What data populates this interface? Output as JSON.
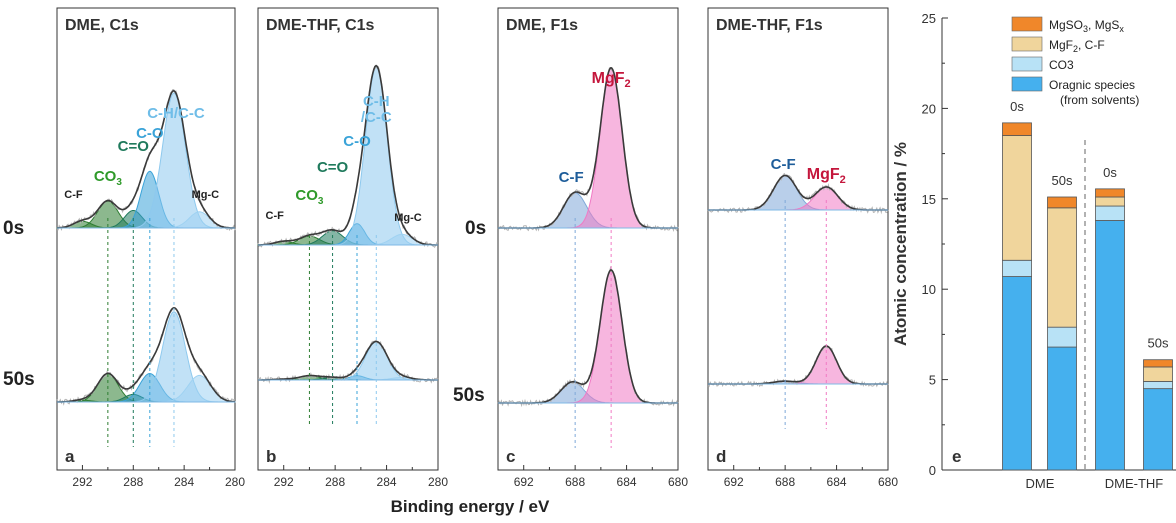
{
  "figure": {
    "row_labels": [
      "0s",
      "50s"
    ],
    "shared_xlabel": "Binding energy / eV"
  },
  "chart_data": [
    {
      "type": "line",
      "panel": "a",
      "title": "DME, C1s",
      "x_ticks": [
        292,
        288,
        284,
        280
      ],
      "xlim": [
        294,
        280
      ],
      "x_reversed": true,
      "components": [
        {
          "name": "C-F",
          "label": "C-F",
          "center": 292.0,
          "color": "#2e7d32"
        },
        {
          "name": "CO3",
          "label": "CO3",
          "center": 290.0,
          "color": "#2e7d32"
        },
        {
          "name": "C=O",
          "label": "C=O",
          "center": 288.0,
          "color": "#1f7a5c"
        },
        {
          "name": "C-O",
          "label": "C-O",
          "center": 286.7,
          "color": "#3aa3d8"
        },
        {
          "name": "C-H/C-C",
          "label": "C-H/C-C",
          "center": 284.8,
          "color": "#8ec9ee"
        },
        {
          "name": "Mg-C",
          "label": "Mg-C",
          "center": 282.8,
          "color": "#9fd2f2"
        }
      ],
      "series": [
        {
          "name": "0s",
          "peaks": [
            {
              "c": 292.0,
              "h": 0.05,
              "w": 0.7,
              "comp": "C-F"
            },
            {
              "c": 290.0,
              "h": 0.2,
              "w": 0.8,
              "comp": "CO3"
            },
            {
              "c": 288.0,
              "h": 0.13,
              "w": 0.7,
              "comp": "C=O"
            },
            {
              "c": 286.7,
              "h": 0.42,
              "w": 0.7,
              "comp": "C-O"
            },
            {
              "c": 284.8,
              "h": 1.0,
              "w": 0.9,
              "comp": "C-H/C-C"
            },
            {
              "c": 282.8,
              "h": 0.12,
              "w": 0.8,
              "comp": "Mg-C"
            }
          ]
        },
        {
          "name": "50s",
          "peaks": [
            {
              "c": 292.0,
              "h": 0.02,
              "w": 0.7,
              "comp": "C-F"
            },
            {
              "c": 290.0,
              "h": 0.3,
              "w": 0.8,
              "comp": "CO3"
            },
            {
              "c": 288.0,
              "h": 0.08,
              "w": 0.7,
              "comp": "C=O"
            },
            {
              "c": 286.7,
              "h": 0.3,
              "w": 0.8,
              "comp": "C-O"
            },
            {
              "c": 284.8,
              "h": 0.95,
              "w": 0.9,
              "comp": "C-H/C-C"
            },
            {
              "c": 282.8,
              "h": 0.28,
              "w": 0.9,
              "comp": "Mg-C"
            }
          ]
        }
      ],
      "annotations": [
        "C-F",
        "CO3",
        "C=O",
        "C-O",
        "C-H/C-C",
        "Mg-C"
      ]
    },
    {
      "type": "line",
      "panel": "b",
      "title": "DME-THF, C1s",
      "x_ticks": [
        292,
        288,
        284,
        280
      ],
      "xlim": [
        294,
        280
      ],
      "x_reversed": true,
      "components": [
        {
          "name": "C-F",
          "label": "C-F",
          "center": 292.0,
          "color": "#2e7d32"
        },
        {
          "name": "CO3",
          "label": "CO3",
          "center": 290.0,
          "color": "#2e7d32"
        },
        {
          "name": "C=O",
          "label": "C=O",
          "center": 288.2,
          "color": "#1f7a5c"
        },
        {
          "name": "C-O",
          "label": "C-O",
          "center": 286.3,
          "color": "#3aa3d8"
        },
        {
          "name": "C-H/C-C",
          "label": "C-H /C-C",
          "center": 284.8,
          "color": "#8ec9ee"
        },
        {
          "name": "Mg-C",
          "label": "Mg-C",
          "center": 282.8,
          "color": "#9fd2f2"
        }
      ],
      "series": [
        {
          "name": "0s",
          "peaks": [
            {
              "c": 292.0,
              "h": 0.02,
              "w": 0.7,
              "comp": "C-F"
            },
            {
              "c": 290.0,
              "h": 0.05,
              "w": 0.8,
              "comp": "CO3"
            },
            {
              "c": 288.2,
              "h": 0.08,
              "w": 0.8,
              "comp": "C=O"
            },
            {
              "c": 286.3,
              "h": 0.12,
              "w": 0.6,
              "comp": "C-O"
            },
            {
              "c": 284.8,
              "h": 1.0,
              "w": 0.85,
              "comp": "C-H/C-C"
            },
            {
              "c": 282.8,
              "h": 0.06,
              "w": 0.8,
              "comp": "Mg-C"
            }
          ]
        },
        {
          "name": "50s",
          "peaks": [
            {
              "c": 292.0,
              "h": 0.01,
              "w": 0.7,
              "comp": "C-F"
            },
            {
              "c": 290.0,
              "h": 0.05,
              "w": 0.8,
              "comp": "CO3"
            },
            {
              "c": 288.2,
              "h": 0.03,
              "w": 0.8,
              "comp": "C=O"
            },
            {
              "c": 286.3,
              "h": 0.05,
              "w": 0.6,
              "comp": "C-O"
            },
            {
              "c": 284.8,
              "h": 0.45,
              "w": 0.85,
              "comp": "C-H/C-C"
            },
            {
              "c": 282.8,
              "h": 0.03,
              "w": 0.8,
              "comp": "Mg-C"
            }
          ]
        }
      ],
      "annotations": [
        "C-F",
        "CO3",
        "C=O",
        "C-O",
        "C-H /C-C",
        "Mg-C"
      ]
    },
    {
      "type": "line",
      "panel": "c",
      "title": "DME, F1s",
      "x_ticks": [
        692,
        688,
        684,
        680
      ],
      "xlim": [
        694,
        680
      ],
      "x_reversed": true,
      "components": [
        {
          "name": "C-F",
          "label": "C-F",
          "center": 688.0,
          "color": "#7fa8d8"
        },
        {
          "name": "MgF2",
          "label": "MgF2",
          "center": 685.2,
          "color": "#f07ac4"
        }
      ],
      "series": [
        {
          "name": "0s",
          "peaks": [
            {
              "c": 688.0,
              "h": 0.22,
              "w": 0.9,
              "comp": "C-F"
            },
            {
              "c": 685.2,
              "h": 1.0,
              "w": 0.85,
              "comp": "MgF2"
            }
          ]
        },
        {
          "name": "50s",
          "peaks": [
            {
              "c": 688.2,
              "h": 0.15,
              "w": 0.9,
              "comp": "C-F"
            },
            {
              "c": 685.2,
              "h": 0.95,
              "w": 0.85,
              "comp": "MgF2"
            }
          ]
        }
      ],
      "annotations": [
        "C-F",
        "MgF2"
      ]
    },
    {
      "type": "line",
      "panel": "d",
      "title": "DME-THF, F1s",
      "x_ticks": [
        692,
        688,
        684,
        680
      ],
      "xlim": [
        694,
        680
      ],
      "x_reversed": true,
      "components": [
        {
          "name": "C-F",
          "label": "C-F",
          "center": 688.0,
          "color": "#7fa8d8"
        },
        {
          "name": "MgF2",
          "label": "MgF2",
          "center": 684.8,
          "color": "#f07ac4"
        }
      ],
      "series": [
        {
          "name": "0s",
          "peaks": [
            {
              "c": 688.0,
              "h": 0.3,
              "w": 0.9,
              "comp": "C-F"
            },
            {
              "c": 684.8,
              "h": 0.2,
              "w": 0.9,
              "comp": "MgF2"
            }
          ]
        },
        {
          "name": "50s",
          "peaks": [
            {
              "c": 688.0,
              "h": 0.03,
              "w": 0.9,
              "comp": "C-F"
            },
            {
              "c": 684.8,
              "h": 0.4,
              "w": 0.8,
              "comp": "MgF2"
            }
          ]
        }
      ],
      "annotations": [
        "C-F",
        "MgF2"
      ]
    },
    {
      "type": "bar",
      "panel": "e",
      "stacked": true,
      "ylabel": "Atomic concentration / %",
      "ylim": [
        0,
        25
      ],
      "y_ticks": [
        0,
        5,
        10,
        15,
        20,
        25
      ],
      "groups": [
        "DME",
        "DME-THF"
      ],
      "bars": [
        {
          "group": "DME",
          "label": "0s"
        },
        {
          "group": "DME",
          "label": "50s"
        },
        {
          "group": "DME-THF",
          "label": "0s"
        },
        {
          "group": "DME-THF",
          "label": "50s"
        }
      ],
      "series": [
        {
          "name": "Oragnic species (from solvents)",
          "values": [
            10.7,
            6.8,
            13.8,
            4.5
          ],
          "color": "#45b0ee"
        },
        {
          "name": "CO3",
          "values": [
            0.9,
            1.1,
            0.8,
            0.4
          ],
          "color": "#b8e2f6"
        },
        {
          "name": "MgF2, C-F",
          "values": [
            6.9,
            6.6,
            0.5,
            0.8
          ],
          "color": "#f0d59c"
        },
        {
          "name": "MgSO3, MgSx",
          "values": [
            0.7,
            0.6,
            0.45,
            0.4
          ],
          "color": "#f0872a"
        }
      ],
      "legend_entries": [
        {
          "key": "MgSO3, MgSx",
          "base": "MgSO",
          "sub": "3",
          "mid": ", MgS",
          "sub2": "x",
          "color": "#f0872a"
        },
        {
          "key": "MgF2, C-F",
          "base": "MgF",
          "sub": "2",
          "mid": ", C-F",
          "sub2": "",
          "color": "#f0d59c"
        },
        {
          "key": "CO3",
          "base": "CO3",
          "sub": "",
          "mid": "",
          "sub2": "",
          "color": "#b8e2f6"
        },
        {
          "key": "Oragnic species (from solvents)",
          "base": "Oragnic species",
          "sub": "",
          "mid": "",
          "sub2": "",
          "line2": "(from solvents)",
          "color": "#45b0ee"
        }
      ],
      "legend_position": "top-right"
    }
  ]
}
